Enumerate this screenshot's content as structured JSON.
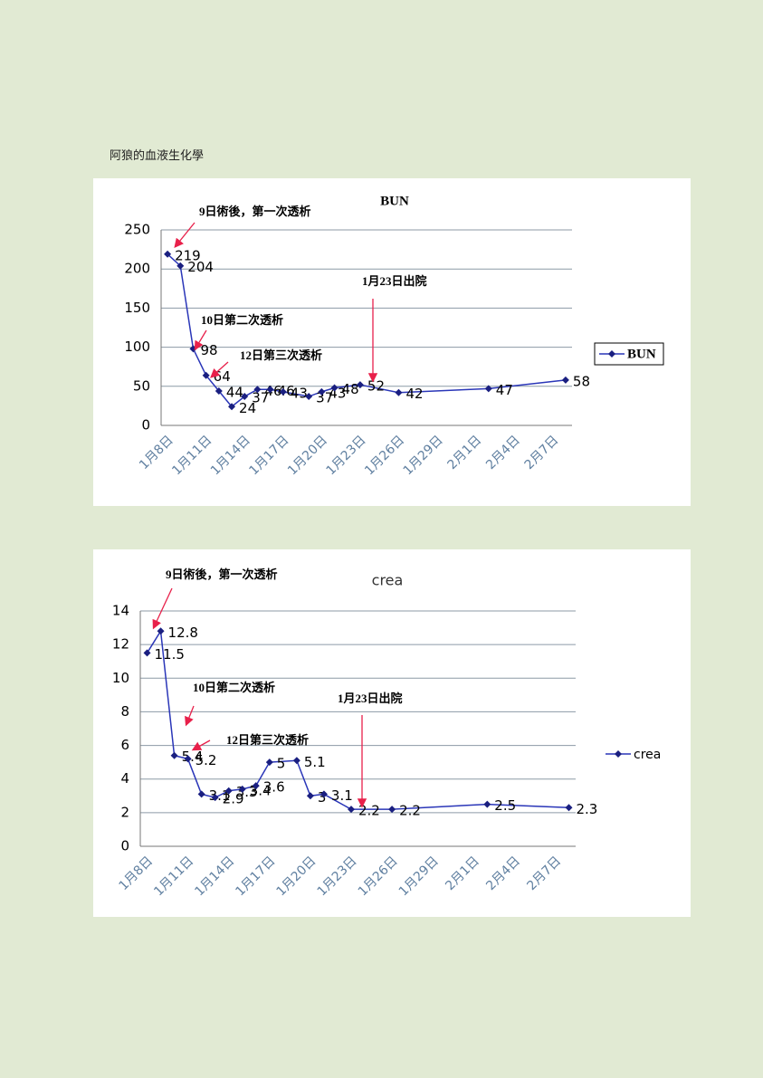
{
  "page_title": "阿狼的血液生化學",
  "chart_data": [
    {
      "type": "line",
      "title": "BUN",
      "x": [
        "1月8日",
        "1月9日",
        "1月10日",
        "1月11日",
        "1月12日",
        "1月13日",
        "1月14日",
        "1月15日",
        "1月16日",
        "1月17日",
        "1月19日",
        "1月20日",
        "1月21日",
        "1月23日",
        "1月26日",
        "2月2日",
        "2月8日"
      ],
      "series": [
        {
          "name": "BUN",
          "color": "#2a36b8",
          "values": [
            219,
            204,
            98,
            64,
            44,
            24,
            37,
            46,
            46,
            43,
            37,
            43,
            48,
            52,
            42,
            47,
            58
          ]
        }
      ],
      "xlim": [
        "1月8日",
        "2月8日"
      ],
      "xticks": [
        "1月8日",
        "1月11日",
        "1月14日",
        "1月17日",
        "1月20日",
        "1月23日",
        "1月26日",
        "1月29日",
        "2月1日",
        "2月4日",
        "2月7日"
      ],
      "ylim": [
        0,
        250
      ],
      "yticks": [
        0,
        50,
        100,
        150,
        200,
        250
      ],
      "grid": true,
      "legend": "right",
      "annotations": [
        "9日術後，第一次透析",
        "10日第二次透析",
        "12日第三次透析",
        "1月23日出院"
      ]
    },
    {
      "type": "line",
      "title": "crea",
      "x": [
        "1月8日",
        "1月9日",
        "1月10日",
        "1月11日",
        "1月12日",
        "1月13日",
        "1月14日",
        "1月15日",
        "1月16日",
        "1月17日",
        "1月19日",
        "1月20日",
        "1月21日",
        "1月23日",
        "1月26日",
        "2月2日",
        "2月8日"
      ],
      "series": [
        {
          "name": "crea",
          "color": "#2a36b8",
          "values": [
            11.5,
            12.8,
            5.4,
            5.2,
            3.1,
            2.9,
            3.3,
            3.4,
            3.6,
            5,
            5.1,
            3,
            3.1,
            2.2,
            2.2,
            2.5,
            2.3
          ]
        }
      ],
      "xlim": [
        "1月8日",
        "2月8日"
      ],
      "xticks": [
        "1月8日",
        "1月11日",
        "1月14日",
        "1月17日",
        "1月20日",
        "1月23日",
        "1月26日",
        "1月29日",
        "2月1日",
        "2月4日",
        "2月7日"
      ],
      "ylim": [
        0,
        14
      ],
      "yticks": [
        0,
        2,
        4,
        6,
        8,
        10,
        12,
        14
      ],
      "grid": true,
      "legend": "right",
      "annotations": [
        "9日術後，第一次透析",
        "10日第二次透析",
        "12日第三次透析",
        "1月23日出院"
      ]
    }
  ]
}
